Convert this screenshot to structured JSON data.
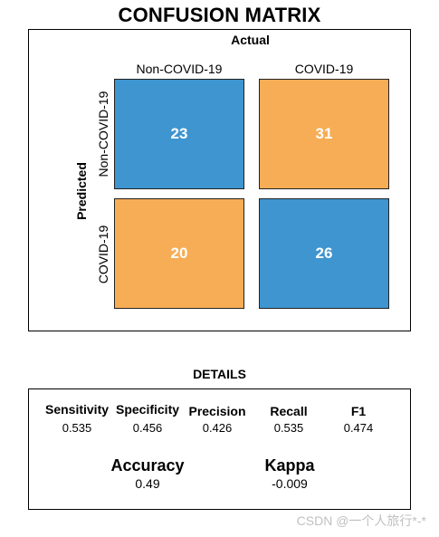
{
  "chart_data": {
    "type": "heatmap",
    "title": "CONFUSION MATRIX",
    "col_axis_label": "Actual",
    "row_axis_label": "Predicted",
    "columns": [
      "Non-COVID-19",
      "COVID-19"
    ],
    "rows": [
      "Non-COVID-19",
      "COVID-19"
    ],
    "values": [
      [
        23,
        31
      ],
      [
        20,
        26
      ]
    ],
    "colors": {
      "diagonal": "#3E95D0",
      "off_diagonal": "#F7AD55"
    }
  },
  "details": {
    "title": "DETAILS",
    "metrics": [
      {
        "name": "Sensitivity",
        "value": "0.535"
      },
      {
        "name": "Specificity",
        "value": "0.456"
      },
      {
        "name": "Precision",
        "value": "0.426"
      },
      {
        "name": "Recall",
        "value": "0.535"
      },
      {
        "name": "F1",
        "value": "0.474"
      }
    ],
    "summary": [
      {
        "name": "Accuracy",
        "value": "0.49"
      },
      {
        "name": "Kappa",
        "value": "-0.009"
      }
    ]
  },
  "watermark": "CSDN @一个人旅行*-*"
}
